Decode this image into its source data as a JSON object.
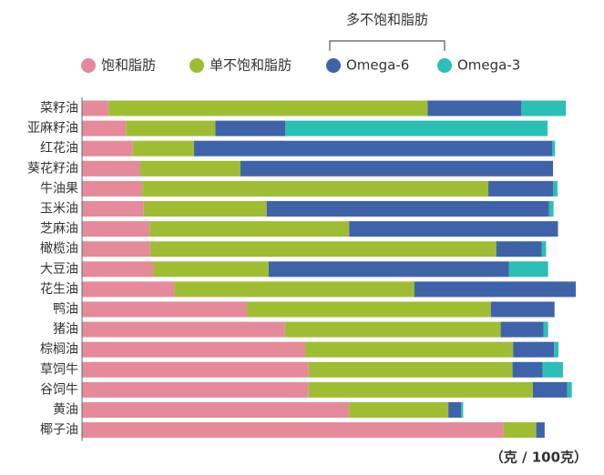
{
  "chart_data": {
    "type": "stacked-bar-horizontal",
    "group_label": "多不饱和脂肪",
    "unit_label": "（克 / 100克）",
    "categories": [
      "菜籽油",
      "亚麻籽油",
      "红花油",
      "葵花籽油",
      "牛油果",
      "玉米油",
      "芝麻油",
      "橄榄油",
      "大豆油",
      "花生油",
      "鸭油",
      "猪油",
      "棕榈油",
      "草饲牛",
      "谷饲牛",
      "黄油",
      "椰子油"
    ],
    "xlim": [
      0,
      100
    ],
    "legend": "top",
    "series": [
      {
        "name": "饱和脂肪",
        "color": "#e48a9a",
        "values": [
          5.4,
          8.9,
          10.3,
          11.8,
          12.2,
          12.5,
          13.7,
          13.8,
          14.4,
          18.8,
          33.4,
          41.1,
          45.2,
          45.9,
          45.9,
          54.1,
          85.4
        ]
      },
      {
        "name": "单不饱和脂肪",
        "color": "#9ebd35",
        "values": [
          64.6,
          18.1,
          12.4,
          20.3,
          70.1,
          24.9,
          40.4,
          70.1,
          23.4,
          48.5,
          49.4,
          43.7,
          42.1,
          41.3,
          45.4,
          20.1,
          6.6
        ]
      },
      {
        "name": "Omega-6",
        "color": "#3f63a8",
        "values": [
          19.0,
          14.2,
          72.5,
          63.3,
          13.1,
          57.2,
          42.3,
          9.2,
          48.7,
          32.7,
          12.9,
          8.7,
          8.3,
          6.1,
          7.0,
          2.6,
          1.7
        ]
      },
      {
        "name": "Omega-3",
        "color": "#2bbfb5",
        "values": [
          9.0,
          53.1,
          0.6,
          0,
          0.9,
          0.9,
          0,
          0.9,
          7.9,
          0,
          0,
          0.9,
          0.9,
          4.1,
          0.9,
          0.4,
          0
        ]
      }
    ]
  }
}
